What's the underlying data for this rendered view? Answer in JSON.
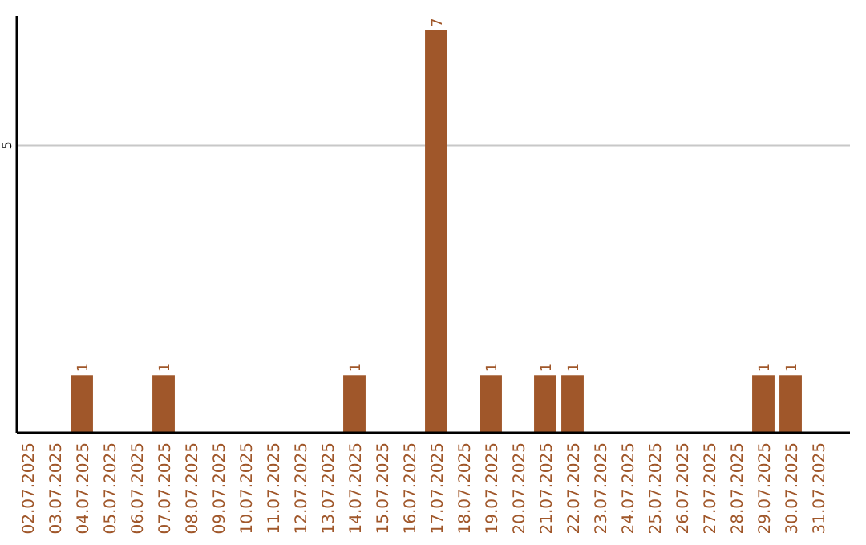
{
  "chart_data": {
    "type": "bar",
    "categories": [
      "02.07.2025",
      "03.07.2025",
      "04.07.2025",
      "05.07.2025",
      "06.07.2025",
      "07.07.2025",
      "08.07.2025",
      "09.07.2025",
      "10.07.2025",
      "11.07.2025",
      "12.07.2025",
      "13.07.2025",
      "14.07.2025",
      "15.07.2025",
      "16.07.2025",
      "17.07.2025",
      "18.07.2025",
      "19.07.2025",
      "20.07.2025",
      "21.07.2025",
      "22.07.2025",
      "23.07.2025",
      "24.07.2025",
      "25.07.2025",
      "26.07.2025",
      "27.07.2025",
      "28.07.2025",
      "29.07.2025",
      "30.07.2025",
      "31.07.2025"
    ],
    "values": [
      0,
      0,
      1,
      0,
      0,
      1,
      0,
      0,
      0,
      0,
      0,
      0,
      1,
      0,
      0,
      7,
      0,
      1,
      0,
      1,
      1,
      0,
      0,
      0,
      0,
      0,
      0,
      1,
      1,
      0
    ],
    "value_labels": [
      null,
      null,
      "1",
      null,
      null,
      "1",
      null,
      null,
      null,
      null,
      null,
      null,
      "1",
      null,
      null,
      "7",
      null,
      "1",
      null,
      "1",
      "1",
      null,
      null,
      null,
      null,
      null,
      null,
      "1",
      "1",
      null
    ],
    "color": "#a0572a",
    "ylim": [
      0,
      7.25
    ],
    "yticks": [
      5
    ],
    "grid": "y"
  }
}
